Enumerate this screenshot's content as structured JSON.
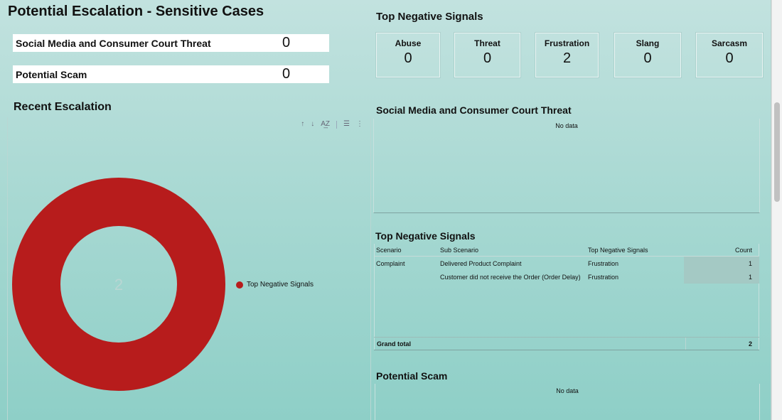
{
  "page": {
    "title": "Potential Escalation - Sensitive Cases"
  },
  "kpis": [
    {
      "label": "Social Media and Consumer Court Threat",
      "value": "0"
    },
    {
      "label": "Potential Scam",
      "value": "0"
    }
  ],
  "signals": {
    "heading": "Top Negative Signals",
    "items": [
      {
        "label": "Abuse",
        "value": "0"
      },
      {
        "label": "Threat",
        "value": "0"
      },
      {
        "label": "Frustration",
        "value": "2"
      },
      {
        "label": "Slang",
        "value": "0"
      },
      {
        "label": "Sarcasm",
        "value": "0"
      }
    ]
  },
  "recent": {
    "heading": "Recent Escalation",
    "toolbar_icons": [
      "sort-ascending-icon",
      "sort-descending-icon",
      "sort-alpha-icon",
      "filter-icon",
      "more-vert-icon"
    ]
  },
  "social_panel": {
    "heading": "Social Media and Consumer Court Threat",
    "empty_text": "No data"
  },
  "signals_table": {
    "heading": "Top Negative Signals",
    "columns": [
      "Scenario",
      "Sub Scenario",
      "Top Negative Signals",
      "Count"
    ],
    "rows": [
      {
        "scenario": "Complaint",
        "sub": "Delivered Product Complaint",
        "signal": "Frustration",
        "count": "1"
      },
      {
        "scenario": "",
        "sub": "Customer did not receive the Order (Order Delay)",
        "signal": "Frustration",
        "count": "1"
      }
    ],
    "grand_total_label": "Grand total",
    "grand_total_value": "2"
  },
  "scam_panel": {
    "heading": "Potential Scam",
    "empty_text": "No data"
  },
  "chart_data": {
    "type": "pie",
    "subtype": "donut",
    "categories": [
      "Top Negative Signals"
    ],
    "values": [
      2
    ],
    "center_label": "2",
    "legend": "right",
    "colors": [
      "#b71c1c"
    ]
  },
  "colors": {
    "accent": "#b71c1c",
    "background_top": "#c2e2df",
    "background_bottom": "#8ecfc7"
  }
}
